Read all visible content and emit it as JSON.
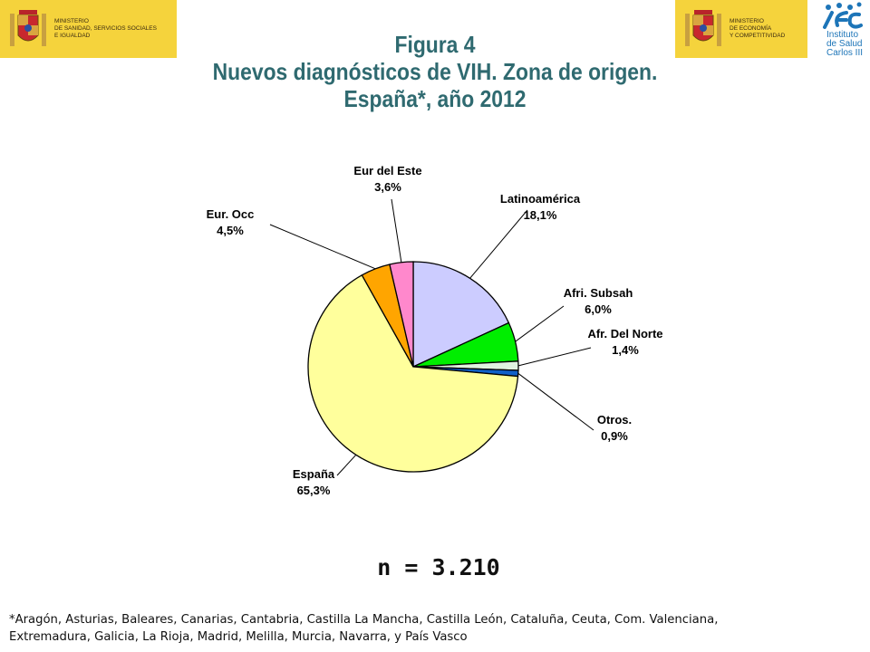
{
  "logos": {
    "left": {
      "text": "Ministerio\nde Sanidad, Servicios Sociales\ne Igualdad"
    },
    "right": {
      "text": "Ministerio\nde Economía\ny Competitividad"
    },
    "isciii": {
      "text": "Instituto\nde Salud\nCarlos III"
    }
  },
  "title": {
    "line1": "Figura 4",
    "line2": "Nuevos diagnósticos de VIH. Zona de origen.",
    "line3": "España*, año 2012"
  },
  "chart_data": {
    "type": "pie",
    "start_angle_deg": 90,
    "direction": "clockwise",
    "slices": [
      {
        "name": "Latinoamérica",
        "value": 18.1,
        "label": "18,1%",
        "color": "#ccccff"
      },
      {
        "name": "Afri. Subsah",
        "value": 6.0,
        "label": "6,0%",
        "color": "#00ee00"
      },
      {
        "name": "Afr. Del Norte",
        "value": 1.4,
        "label": "1,4%",
        "color": "#dff2df"
      },
      {
        "name": "Otros.",
        "value": 0.9,
        "label": "0,9%",
        "color": "#1060c8"
      },
      {
        "name": "España",
        "value": 65.3,
        "label": "65,3%",
        "color": "#ffff9c"
      },
      {
        "name": "Eur. Occ",
        "value": 4.5,
        "label": "4,5%",
        "color": "#ffa500"
      },
      {
        "name": "Eur del Este",
        "value": 3.6,
        "label": "3,6%",
        "color": "#ff88cc"
      }
    ]
  },
  "n_label": "n = 3.210",
  "footnote": "*Aragón, Asturias, Baleares, Canarias, Cantabria, Castilla La Mancha, Castilla León, Cataluña, Ceuta, Com. Valenciana,\nExtremadura, Galicia, La Rioja, Madrid,  Melilla, Murcia, Navarra, y País Vasco"
}
